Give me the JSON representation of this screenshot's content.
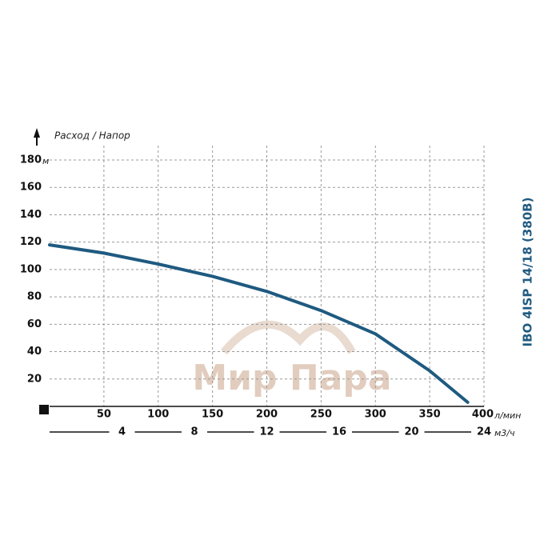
{
  "chart_data": {
    "type": "line",
    "title": "IBO 4ISP 14/18 (380В)",
    "axis_label": "Расход / Напор",
    "watermark": "Мир Пара",
    "x": [
      0,
      50,
      100,
      150,
      200,
      250,
      300,
      350,
      385
    ],
    "series": [
      {
        "name": "IBO 4ISP 14/18 (380В)",
        "color": "#1f5a80",
        "values": [
          118,
          112,
          104,
          95,
          84,
          70,
          53,
          26,
          3
        ]
      }
    ],
    "xlim": [
      0,
      400
    ],
    "xticks": [
      50,
      100,
      150,
      200,
      250,
      300,
      350,
      400
    ],
    "x_unit": "л/мин",
    "x2lim": [
      0,
      24
    ],
    "x2ticks": [
      4,
      8,
      12,
      16,
      20,
      24
    ],
    "x2_unit": "м3/ч",
    "ylim": [
      0,
      180
    ],
    "yticks": [
      20,
      40,
      60,
      80,
      100,
      120,
      140,
      160,
      180
    ],
    "y_unit": "м",
    "grid": true
  }
}
